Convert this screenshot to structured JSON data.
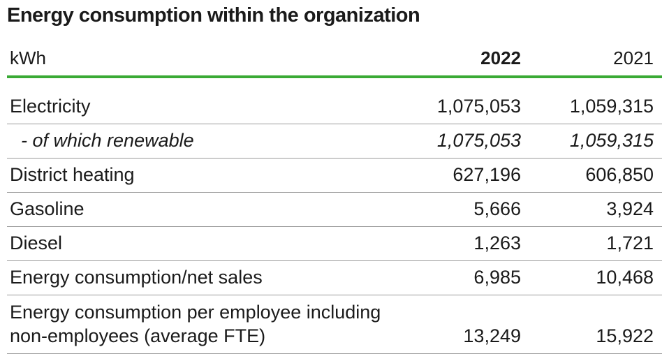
{
  "title": "Energy consumption within the organization",
  "table": {
    "header": [
      "kWh",
      "2022",
      "2021"
    ],
    "rows": [
      {
        "label": "Electricity",
        "values": [
          "1,075,053",
          "1,059,315"
        ]
      },
      {
        "label": "- of which renewable",
        "values": [
          "1,075,053",
          "1,059,315"
        ],
        "italic": true
      },
      {
        "label": "District heating",
        "values": [
          "627,196",
          "606,850"
        ]
      },
      {
        "label": "Gasoline",
        "values": [
          "5,666",
          "3,924"
        ]
      },
      {
        "label": "Diesel",
        "values": [
          "1,263",
          "1,721"
        ]
      },
      {
        "label": "Energy consumption/net sales",
        "values": [
          "6,985",
          "10,468"
        ]
      },
      {
        "label": "Energy consumption per employee including non-employees (average FTE)",
        "values": [
          "13,249",
          "15,922"
        ]
      }
    ]
  }
}
